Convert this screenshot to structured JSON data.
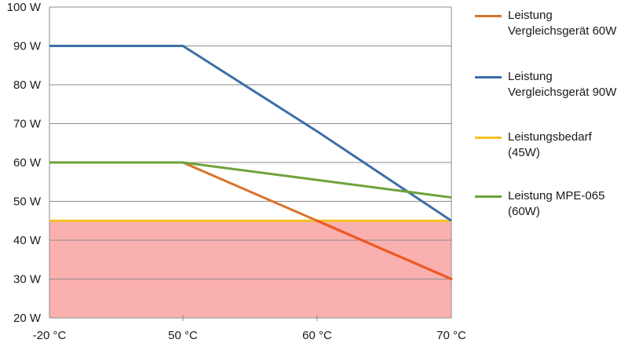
{
  "chart_data": {
    "type": "line",
    "title": "",
    "xlabel": "",
    "ylabel": "",
    "categories": [
      "-20 °C",
      "50 °C",
      "60 °C",
      "70 °C"
    ],
    "y_ticks": [
      "20 W",
      "30 W",
      "40 W",
      "50 W",
      "60 W",
      "70 W",
      "80 W",
      "90 W",
      "100 W"
    ],
    "ylim": [
      20,
      100
    ],
    "grid": true,
    "legend_position": "right",
    "series": [
      {
        "name": "Leistung Vergleichsgerät 60W",
        "legend_lines": [
          "Leistung",
          "Vergleichsgerät 60W"
        ],
        "values": [
          60,
          60,
          45,
          30
        ],
        "color": "#d9742b"
      },
      {
        "name": "Leistung Vergleichsgerät 90W",
        "legend_lines": [
          "Leistung",
          "Vergleichsgerät 90W"
        ],
        "values": [
          90,
          90,
          68,
          45
        ],
        "color": "#3b6ea8"
      },
      {
        "name": "Leistungsbedarf (45W)",
        "legend_lines": [
          "Leistungsbedarf",
          "(45W)"
        ],
        "values": [
          45,
          45,
          45,
          45
        ],
        "color": "#f2c224"
      },
      {
        "name": "Leistung MPE-065 (60W)",
        "legend_lines": [
          "Leistung MPE-065",
          "(60W)"
        ],
        "values": [
          60,
          60,
          55.5,
          51
        ],
        "color": "#6fa23a"
      }
    ],
    "shaded_region": {
      "description": "below power requirement",
      "from": 20,
      "to": 45,
      "color": "#fbb0b0"
    },
    "highlight_segment": {
      "series": "Leistung Vergleichsgerät 60W",
      "from_value": 45,
      "to_value": 30,
      "color": "#ee5a24"
    }
  }
}
